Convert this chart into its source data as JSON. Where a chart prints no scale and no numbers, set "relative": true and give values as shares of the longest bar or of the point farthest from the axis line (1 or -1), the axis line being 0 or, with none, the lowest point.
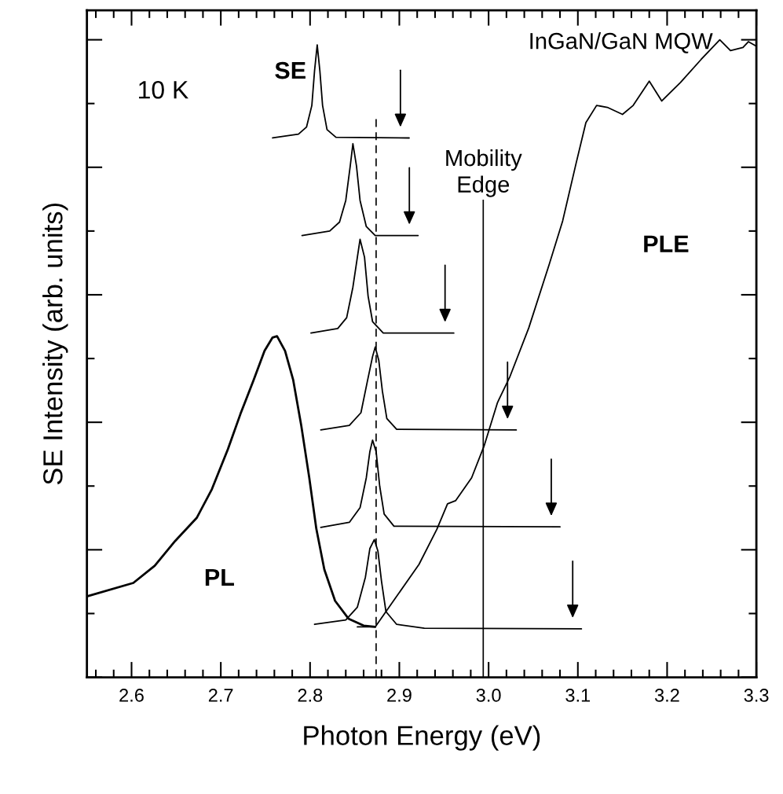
{
  "chart_data": {
    "type": "line",
    "relative": true,
    "xlabel": "Photon Energy (eV)",
    "ylabel": "SE Intensity (arb. units)",
    "xlim": [
      2.55,
      3.3
    ],
    "xticks": [
      2.6,
      2.7,
      2.8,
      2.9,
      {
        "value": 3,
        "label": "3.0"
      },
      3.1,
      3.2,
      3.3
    ],
    "tick_labels": "x",
    "grid": false,
    "series": [
      {
        "color": "#000000",
        "x": [
          2.55,
          2.602,
          2.626,
          2.649,
          2.673,
          2.69,
          2.708,
          2.722,
          2.737,
          2.749,
          2.758,
          2.763,
          2.772,
          2.781,
          2.79,
          2.799,
          2.807,
          2.816,
          2.828,
          2.843,
          2.86,
          2.873
        ],
        "values": [
          0.127,
          0.148,
          0.175,
          0.214,
          0.25,
          0.295,
          0.358,
          0.413,
          0.467,
          0.512,
          0.533,
          0.535,
          0.512,
          0.467,
          0.396,
          0.314,
          0.233,
          0.169,
          0.12,
          0.092,
          0.081,
          0.079
        ]
      },
      {
        "color": "#000000",
        "x": [
          2.853,
          2.873,
          2.895,
          2.922,
          2.942,
          2.954,
          2.963,
          2.981,
          2.995,
          3.01,
          3.024,
          3.045,
          3.068,
          3.083,
          3.098,
          3.109,
          3.121,
          3.133,
          3.15,
          3.162,
          3.18,
          3.194,
          3.215,
          3.238,
          3.259,
          3.271,
          3.285,
          3.291,
          3.3
        ],
        "values": [
          0.079,
          0.079,
          0.123,
          0.177,
          0.232,
          0.272,
          0.277,
          0.313,
          0.363,
          0.431,
          0.472,
          0.548,
          0.648,
          0.716,
          0.806,
          0.87,
          0.897,
          0.894,
          0.883,
          0.897,
          0.935,
          0.904,
          0.933,
          0.969,
          1.0,
          0.983,
          0.988,
          0.997,
          0.99
        ]
      },
      {
        "color": "#000000",
        "x": [
          2.758,
          2.787,
          2.796,
          2.802,
          2.805,
          2.808,
          2.811,
          2.814,
          2.819,
          2.829,
          2.911
        ],
        "values": [
          0.846,
          0.852,
          0.863,
          0.897,
          0.951,
          0.992,
          0.951,
          0.897,
          0.859,
          0.847,
          0.846
        ]
      },
      {
        "color": "#000000",
        "x": [
          2.791,
          2.822,
          2.833,
          2.84,
          2.845,
          2.848,
          2.852,
          2.856,
          2.863,
          2.873,
          2.921
        ],
        "values": [
          0.693,
          0.7,
          0.714,
          0.748,
          0.802,
          0.837,
          0.802,
          0.748,
          0.707,
          0.693,
          0.693
        ]
      },
      {
        "color": "#000000",
        "x": [
          2.801,
          2.831,
          2.841,
          2.848,
          2.853,
          2.856,
          2.861,
          2.865,
          2.87,
          2.882,
          2.961
        ],
        "values": [
          0.54,
          0.547,
          0.564,
          0.612,
          0.659,
          0.687,
          0.659,
          0.598,
          0.558,
          0.54,
          0.54
        ]
      },
      {
        "color": "#000000",
        "x": [
          2.812,
          2.844,
          2.857,
          2.864,
          2.87,
          2.873,
          2.877,
          2.881,
          2.886,
          2.897,
          3.031
        ],
        "values": [
          0.388,
          0.395,
          0.415,
          0.463,
          0.503,
          0.518,
          0.497,
          0.449,
          0.406,
          0.389,
          0.388
        ]
      },
      {
        "color": "#000000",
        "x": [
          2.812,
          2.844,
          2.856,
          2.863,
          2.867,
          2.87,
          2.874,
          2.878,
          2.883,
          2.894,
          3.08
        ],
        "values": [
          0.235,
          0.243,
          0.266,
          0.313,
          0.354,
          0.372,
          0.354,
          0.3,
          0.256,
          0.237,
          0.236
        ]
      },
      {
        "color": "#000000",
        "x": [
          2.805,
          2.84,
          2.853,
          2.862,
          2.867,
          2.872,
          2.876,
          2.88,
          2.885,
          2.897,
          2.928,
          3.104
        ],
        "values": [
          0.083,
          0.09,
          0.11,
          0.157,
          0.202,
          0.216,
          0.198,
          0.151,
          0.103,
          0.083,
          0.077,
          0.076
        ]
      }
    ],
    "ref_lines": [
      {
        "axis": "x",
        "value": 2.874,
        "line_style": "dashed",
        "color": "#000000"
      },
      {
        "axis": "x",
        "value": 2.994,
        "label": "Mobility\nEdge",
        "line_style": "solid",
        "color": "#000000"
      }
    ],
    "annotations": [
      "10 K",
      "SE",
      "InGaN/GaN MQW",
      "PL",
      "PLE"
    ]
  }
}
